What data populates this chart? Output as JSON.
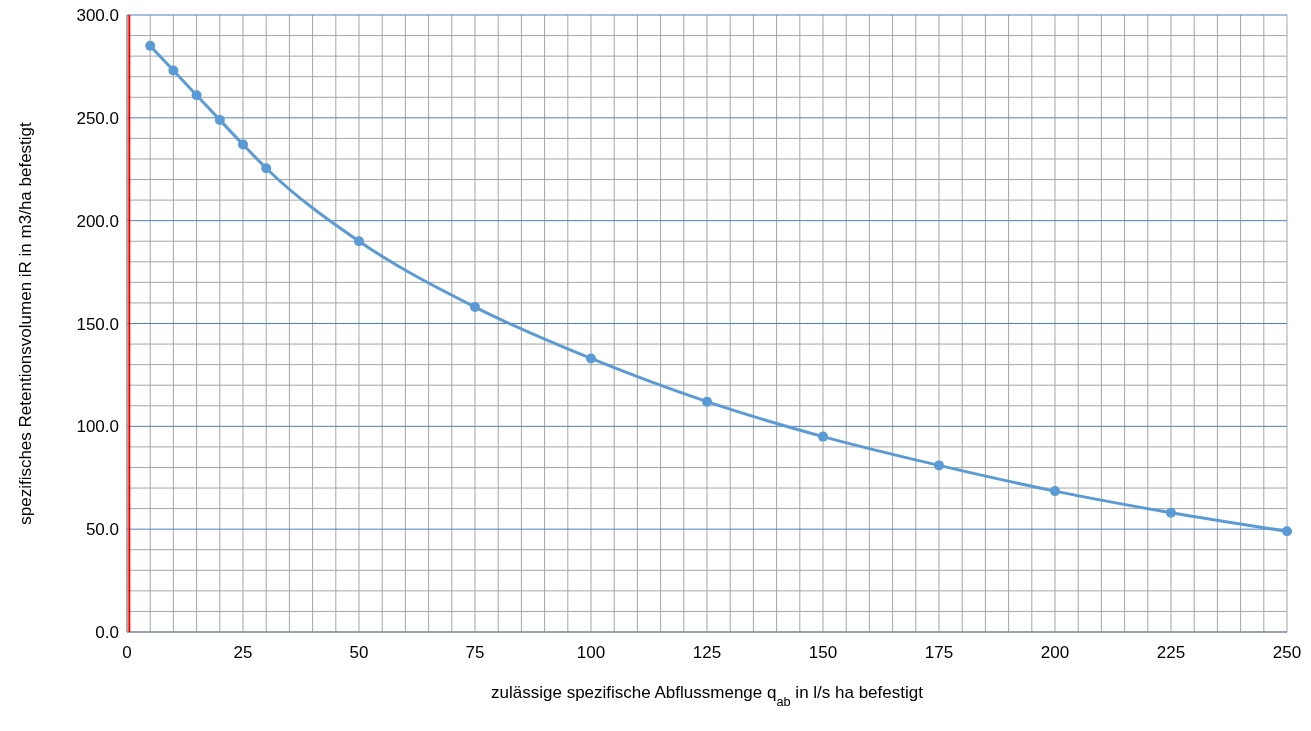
{
  "chart_data": {
    "type": "line",
    "xlabel": "zulässige spezifische Abflussmenge q$_{ab}$ in l/s ha befestigt",
    "ylabel": "spezifisches Retentionsvolumen iR in m3/ha befestigt",
    "xlim": [
      0,
      250
    ],
    "ylim": [
      0,
      300
    ],
    "xticks": [
      0,
      {
        "value": 5,
        "label": null
      },
      {
        "value": 10,
        "label": null
      },
      {
        "value": 15,
        "label": null
      },
      {
        "value": 20,
        "label": null
      },
      25,
      {
        "value": 30,
        "label": null
      },
      {
        "value": 35,
        "label": null
      },
      {
        "value": 40,
        "label": null
      },
      {
        "value": 45,
        "label": null
      },
      50,
      {
        "value": 55,
        "label": null
      },
      {
        "value": 60,
        "label": null
      },
      {
        "value": 65,
        "label": null
      },
      {
        "value": 70,
        "label": null
      },
      75,
      {
        "value": 80,
        "label": null
      },
      {
        "value": 85,
        "label": null
      },
      {
        "value": 90,
        "label": null
      },
      {
        "value": 95,
        "label": null
      },
      100,
      {
        "value": 105,
        "label": null
      },
      {
        "value": 110,
        "label": null
      },
      {
        "value": 115,
        "label": null
      },
      {
        "value": 120,
        "label": null
      },
      125,
      {
        "value": 130,
        "label": null
      },
      {
        "value": 135,
        "label": null
      },
      {
        "value": 140,
        "label": null
      },
      {
        "value": 145,
        "label": null
      },
      150,
      {
        "value": 155,
        "label": null
      },
      {
        "value": 160,
        "label": null
      },
      {
        "value": 165,
        "label": null
      },
      {
        "value": 170,
        "label": null
      },
      175,
      {
        "value": 180,
        "label": null
      },
      {
        "value": 185,
        "label": null
      },
      {
        "value": 190,
        "label": null
      },
      {
        "value": 195,
        "label": null
      },
      200,
      {
        "value": 205,
        "label": null
      },
      {
        "value": 210,
        "label": null
      },
      {
        "value": 215,
        "label": null
      },
      {
        "value": 220,
        "label": null
      },
      225,
      {
        "value": 230,
        "label": null
      },
      {
        "value": 235,
        "label": null
      },
      {
        "value": 240,
        "label": null
      },
      {
        "value": 245,
        "label": null
      },
      250
    ],
    "yticks": [
      {
        "value": 0,
        "label": "0.0"
      },
      {
        "value": 10,
        "label": null
      },
      {
        "value": 20,
        "label": null
      },
      {
        "value": 30,
        "label": null
      },
      {
        "value": 40,
        "label": null
      },
      {
        "value": 50,
        "label": "50.0"
      },
      {
        "value": 60,
        "label": null
      },
      {
        "value": 70,
        "label": null
      },
      {
        "value": 80,
        "label": null
      },
      {
        "value": 90,
        "label": null
      },
      {
        "value": 100,
        "label": "100.0"
      },
      {
        "value": 110,
        "label": null
      },
      {
        "value": 120,
        "label": null
      },
      {
        "value": 130,
        "label": null
      },
      {
        "value": 140,
        "label": null
      },
      {
        "value": 150,
        "label": "150.0"
      },
      {
        "value": 160,
        "label": null
      },
      {
        "value": 170,
        "label": null
      },
      {
        "value": 180,
        "label": null
      },
      {
        "value": 190,
        "label": null
      },
      {
        "value": 200,
        "label": "200.0"
      },
      {
        "value": 210,
        "label": null
      },
      {
        "value": 220,
        "label": null
      },
      {
        "value": 230,
        "label": null
      },
      {
        "value": 240,
        "label": null
      },
      {
        "value": 250,
        "label": "250.0"
      },
      {
        "value": 260,
        "label": null
      },
      {
        "value": 270,
        "label": null
      },
      {
        "value": 280,
        "label": null
      },
      {
        "value": 290,
        "label": null
      },
      {
        "value": 300,
        "label": "300.0"
      }
    ],
    "grid": true,
    "marker": "circle",
    "series": [
      {
        "color": "#5b9bd5",
        "x": [
          5,
          10,
          15,
          20,
          25,
          30,
          50,
          75,
          100,
          125,
          150,
          175,
          200,
          225,
          250
        ],
        "values": [
          285,
          273,
          261,
          249,
          237,
          225.5,
          190,
          158,
          133,
          112,
          95,
          81,
          68.5,
          58,
          49
        ]
      }
    ],
    "ref_lines": [
      {
        "axis": "x",
        "value": 0.5,
        "color": "#ff0000"
      }
    ]
  }
}
